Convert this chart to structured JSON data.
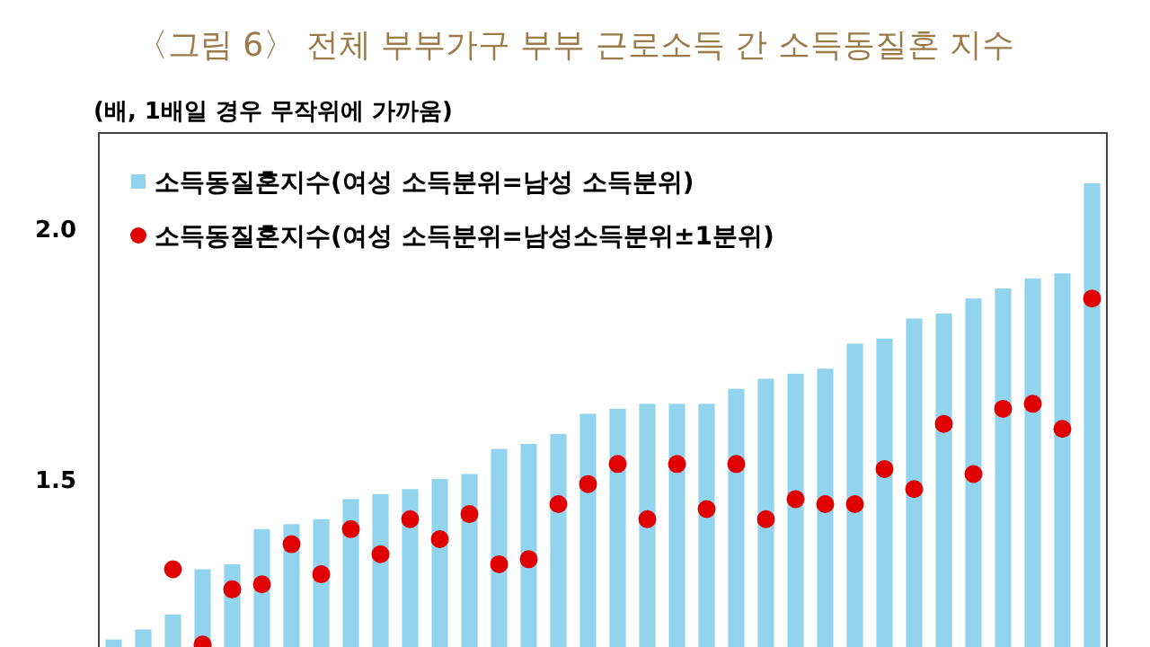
{
  "chart_data": {
    "type": "bar",
    "title": "〈그림 6〉 전체 부부가구 부부 근로소득 간 소득동질혼 지수",
    "ylabel": "(배, 1배일 경우 무작위에 가까움)",
    "categories": [
      null,
      null,
      null,
      null,
      null,
      null,
      null,
      null,
      null,
      null,
      null,
      null,
      null,
      null,
      null,
      null,
      null,
      null,
      null,
      null,
      null,
      null,
      null,
      null,
      null,
      null,
      null,
      null,
      null,
      null,
      null,
      null,
      null,
      null
    ],
    "series": [
      {
        "name": "소득동질혼지수(여성 소득분위=남성 소득분위)",
        "color": "#92d3ee",
        "values": [
          1.18,
          1.2,
          1.23,
          1.32,
          1.33,
          1.4,
          1.41,
          1.42,
          1.46,
          1.47,
          1.48,
          1.5,
          1.51,
          1.56,
          1.57,
          1.59,
          1.63,
          1.64,
          1.65,
          1.65,
          1.65,
          1.68,
          1.7,
          1.71,
          1.72,
          1.77,
          1.78,
          1.82,
          1.83,
          1.86,
          1.88,
          1.9,
          1.91,
          2.09
        ]
      },
      {
        "name": "소득동질혼지수(여성 소득분위=남성소득분위±1분위)",
        "type": "scatter",
        "marker": "circle",
        "color": "#e00000",
        "values": [
          null,
          null,
          1.32,
          1.17,
          1.28,
          1.29,
          1.37,
          1.31,
          1.4,
          1.35,
          1.42,
          1.38,
          1.43,
          1.33,
          1.34,
          1.45,
          1.49,
          1.53,
          1.42,
          1.53,
          1.44,
          1.53,
          1.42,
          1.46,
          1.45,
          1.45,
          1.52,
          1.48,
          1.61,
          1.51,
          1.64,
          1.65,
          1.6,
          1.86
        ]
      }
    ],
    "ylim": [
      1.165,
      2.19
    ],
    "yticks": [
      1.5,
      {
        "value": 2,
        "label": "2.0"
      }
    ],
    "legend": "top left",
    "grid": false
  }
}
